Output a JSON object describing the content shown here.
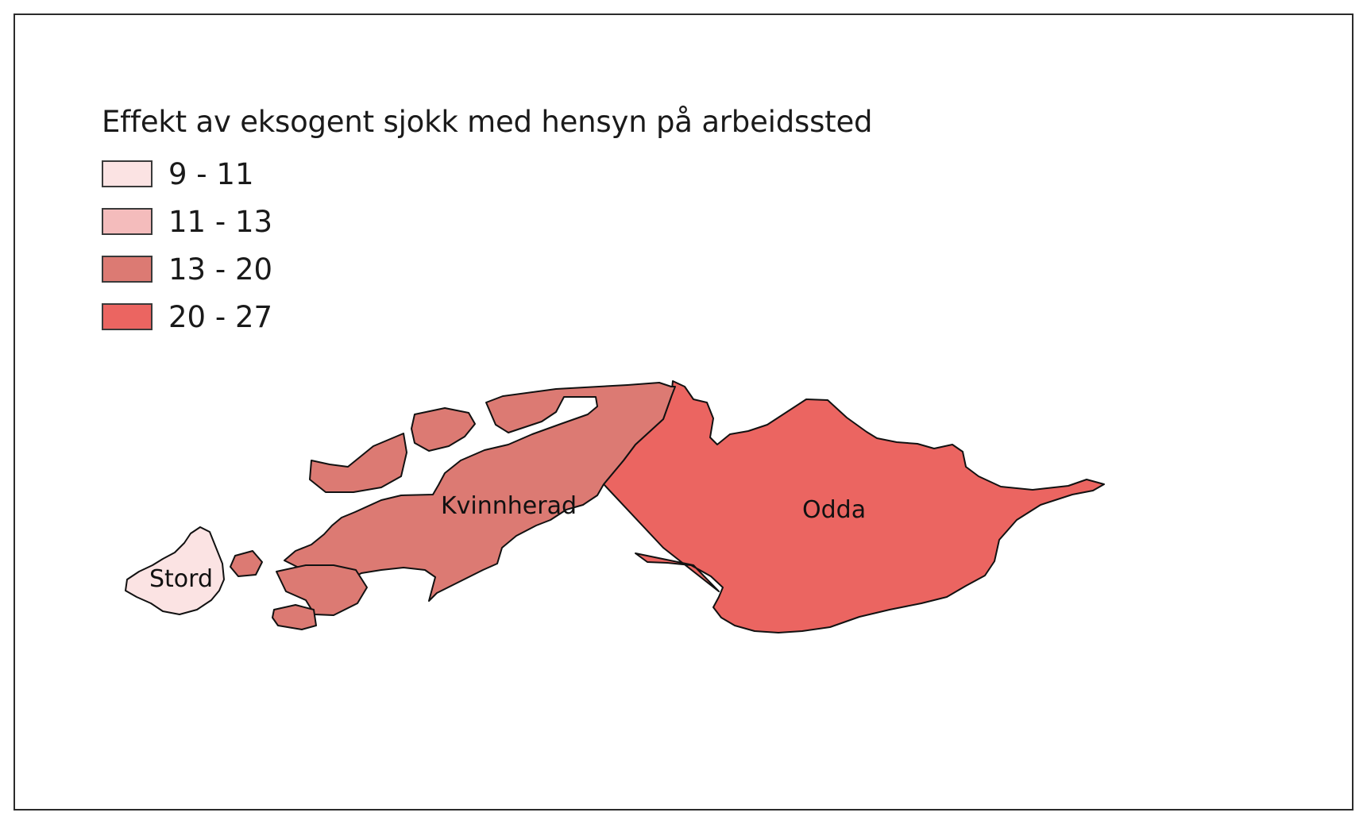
{
  "legend": {
    "title": "Effekt av eksogent sjokk med hensyn på arbeidssted",
    "classes": [
      {
        "label": "9 - 11",
        "color": "#fbe3e3"
      },
      {
        "label": "11 - 13",
        "color": "#f4bcbc"
      },
      {
        "label": "13 - 20",
        "color": "#dc7a73"
      },
      {
        "label": "20 - 27",
        "color": "#eb6561"
      }
    ]
  },
  "regions": [
    {
      "name": "Stord",
      "class": "9 - 11",
      "color": "#fbe3e3"
    },
    {
      "name": "Kvinnherad",
      "class": "13 - 20",
      "color": "#dc7a73"
    },
    {
      "name": "Odda",
      "class": "20 - 27",
      "color": "#eb6561"
    }
  ],
  "colors": {
    "frame_border": "#2b2b2b",
    "region_outline": "#111111",
    "background": "#ffffff"
  }
}
